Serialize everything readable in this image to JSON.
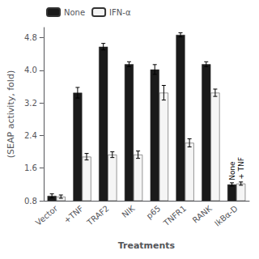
{
  "chart_data": {
    "type": "bar",
    "categories": [
      "Vector",
      "+TNF",
      "TRAF2",
      "NIK",
      "p65",
      "TNFR1",
      "RANK",
      "IkBα-D"
    ],
    "series": [
      {
        "name": "None",
        "color": "#1a1a1a",
        "values": [
          0.92,
          3.45,
          4.58,
          4.15,
          4.02,
          4.87,
          4.15,
          1.2
        ],
        "errors": [
          0.05,
          0.13,
          0.08,
          0.06,
          0.12,
          0.05,
          0.06,
          0.04
        ]
      },
      {
        "name": "IFN-α",
        "color": "#f5f5f5",
        "values": [
          0.9,
          1.88,
          1.93,
          1.93,
          3.45,
          2.22,
          3.45,
          1.22
        ],
        "errors": [
          0.04,
          0.08,
          0.07,
          0.09,
          0.18,
          0.1,
          0.09,
          0.04
        ]
      }
    ],
    "xlabel": "Treatments",
    "ylabel": "(SEAP activity, fold)",
    "ylim": [
      0.8,
      5.05
    ],
    "yticks": [
      0.8,
      1.6,
      2.4,
      3.2,
      {
        "value": 4.0,
        "label": "4.0"
      },
      4.8
    ],
    "grid": false,
    "legend": "upper left",
    "annotations": [
      {
        "text": "None",
        "category": "IkBα-D",
        "series": "None"
      },
      {
        "text": "+ TNF",
        "category": "IkBα-D",
        "series": "IFN-α"
      }
    ]
  }
}
